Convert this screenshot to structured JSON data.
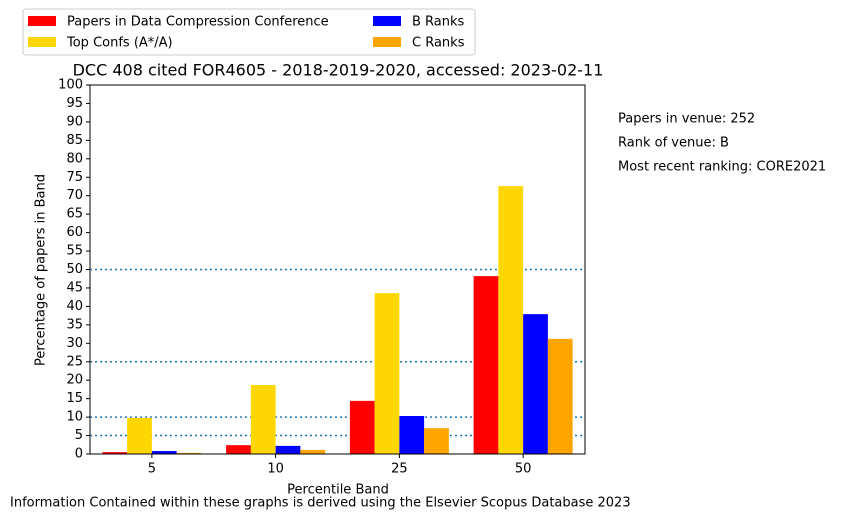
{
  "chart_data": {
    "type": "bar",
    "title": "DCC 408 cited FOR4605 - 2018-2019-2020, accessed: 2023-02-11",
    "x_label": "Percentile Band",
    "y_label": "Percentage of papers in Band",
    "categories": [
      "5",
      "10",
      "25",
      "50"
    ],
    "series": [
      {
        "name": "Papers in Data Compression Conference",
        "color": "#ff0000",
        "values": [
          0.5,
          2.4,
          14.4,
          48.2
        ]
      },
      {
        "name": "Top Confs (A*/A)",
        "color": "#ffd700",
        "values": [
          9.8,
          18.7,
          43.6,
          72.6
        ]
      },
      {
        "name": "B Ranks",
        "color": "#0000ff",
        "values": [
          0.8,
          2.2,
          10.3,
          37.9
        ]
      },
      {
        "name": "C Ranks",
        "color": "#ffa500",
        "values": [
          0.3,
          1.1,
          7.0,
          31.2
        ]
      }
    ],
    "ylim": [
      0,
      100
    ],
    "yticks": [
      0,
      5,
      10,
      15,
      20,
      25,
      30,
      35,
      40,
      45,
      50,
      55,
      60,
      65,
      70,
      75,
      80,
      85,
      90,
      95,
      100
    ],
    "reference_lines": {
      "values": [
        5,
        10,
        25,
        50
      ],
      "color": "#1f77b4"
    },
    "legend": "upper left",
    "annotations": [
      "Papers in venue: 252",
      "Rank of venue: B",
      "Most recent ranking: CORE2021"
    ],
    "footer": "Information Contained within these graphs is derived using the Elsevier Scopus Database 2023"
  }
}
